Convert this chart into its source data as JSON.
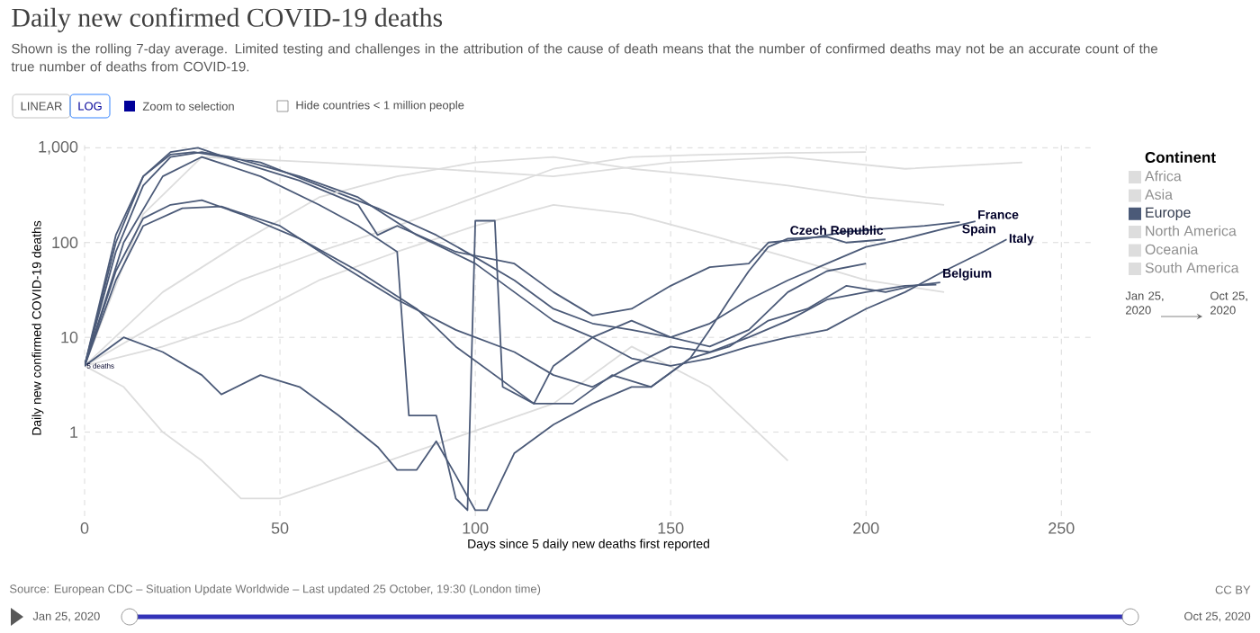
{
  "chart_data": {
    "type": "line",
    "title": "Daily new confirmed COVID-19 deaths",
    "subtitle": "Shown is the rolling 7-day average. Limited testing and challenges in the attribution of the cause of death means that the number of confirmed deaths may not be an accurate count of the true number of deaths from COVID-19.",
    "xlabel": "Days since 5 daily new deaths first reported",
    "ylabel": "Daily new confirmed COVID-19 deaths",
    "legend_title": "Continent",
    "log": true,
    "grid": true,
    "legend": "right",
    "marker": "none",
    "line_style": "solid",
    "xlim": [
      0,
      258
    ],
    "ylim": [
      0.13,
      1200
    ],
    "xticks": [
      0,
      50,
      100,
      150,
      200,
      250
    ],
    "yticks": [
      1,
      10,
      100,
      {
        "value": 1000,
        "label": "1,000"
      }
    ],
    "series": [
      {
        "name": "Africa",
        "color": "#dddddd",
        "x": [
          0,
          20,
          40,
          60,
          80,
          100,
          120,
          140,
          160,
          180,
          200,
          220
        ],
        "values": [
          5,
          8,
          15,
          40,
          80,
          150,
          250,
          200,
          120,
          70,
          40,
          30
        ]
      },
      {
        "name": "Asia",
        "color": "#dddddd",
        "x": [
          0,
          20,
          40,
          60,
          80,
          100,
          120,
          140,
          160,
          180,
          200
        ],
        "values": [
          5,
          15,
          40,
          80,
          150,
          300,
          600,
          800,
          850,
          880,
          900
        ]
      },
      {
        "name": "Europe",
        "color": "#4b5a78",
        "x": [
          0,
          8,
          15,
          22,
          30,
          45,
          60,
          75,
          90,
          100,
          110,
          120,
          130,
          140,
          150,
          160,
          170,
          180,
          190,
          200,
          210,
          220,
          228
        ],
        "values": [
          5,
          80,
          400,
          800,
          900,
          700,
          400,
          230,
          120,
          70,
          40,
          20,
          14,
          12,
          10,
          14,
          25,
          40,
          60,
          90,
          110,
          140,
          168
        ]
      },
      {
        "name": "North America",
        "color": "#dddddd",
        "x": [
          0,
          15,
          30,
          60,
          90,
          120,
          150,
          180,
          210,
          240
        ],
        "values": [
          5,
          200,
          800,
          700,
          600,
          500,
          700,
          800,
          600,
          700
        ]
      },
      {
        "name": "Oceania",
        "color": "#dddddd",
        "x": [
          0,
          10,
          20,
          30,
          40,
          50,
          120,
          140,
          160,
          180
        ],
        "values": [
          5,
          3,
          1,
          0.5,
          0.2,
          0.2,
          2,
          8,
          3,
          0.5
        ]
      },
      {
        "name": "South America",
        "color": "#dddddd",
        "x": [
          0,
          20,
          40,
          60,
          80,
          100,
          120,
          140,
          160,
          180,
          200,
          220
        ],
        "values": [
          5,
          30,
          100,
          300,
          500,
          700,
          800,
          600,
          500,
          400,
          300,
          250
        ]
      },
      {
        "color": "#4b5a78",
        "x": [
          0,
          8,
          15,
          22,
          29,
          40,
          55,
          70,
          75,
          80,
          95,
          110,
          120,
          130,
          140,
          150,
          160,
          170,
          175,
          185,
          195,
          205,
          215,
          224
        ],
        "values": [
          5,
          100,
          500,
          900,
          1000,
          700,
          450,
          250,
          120,
          150,
          80,
          60,
          30,
          17,
          20,
          35,
          55,
          60,
          100,
          110,
          130,
          140,
          150,
          165
        ]
      },
      {
        "color": "#4b5a78",
        "x": [
          0,
          8,
          15,
          22,
          28,
          40,
          55,
          70,
          85,
          100,
          110,
          120,
          130,
          140,
          150,
          160,
          170,
          180,
          190,
          200,
          210,
          220,
          230,
          236
        ],
        "values": [
          5,
          120,
          500,
          850,
          900,
          750,
          500,
          300,
          120,
          60,
          30,
          15,
          10,
          6,
          5,
          6,
          8,
          10,
          12,
          20,
          30,
          50,
          80,
          108
        ]
      },
      {
        "color": "#4b5a78",
        "x": [
          0,
          8,
          15,
          22,
          30,
          40,
          55,
          70,
          85,
          95,
          105,
          115,
          125,
          135,
          145,
          155,
          165,
          175,
          185,
          195,
          205,
          212,
          219
        ],
        "values": [
          5,
          50,
          180,
          250,
          280,
          200,
          110,
          50,
          20,
          8,
          4,
          2,
          2,
          4,
          3,
          6,
          8,
          15,
          20,
          35,
          30,
          35,
          38
        ]
      },
      {
        "color": "#4b5a78",
        "x": [
          0,
          10,
          20,
          30,
          35,
          45,
          55,
          65,
          75,
          80,
          85,
          90,
          95,
          100,
          103,
          110,
          120,
          130,
          140,
          145,
          155,
          160,
          165,
          170,
          175,
          180,
          190,
          195,
          205
        ],
        "values": [
          5,
          10,
          7,
          4,
          2.5,
          4,
          3,
          1.5,
          0.7,
          0.4,
          0.4,
          0.8,
          0.35,
          0.15,
          0.15,
          0.6,
          1.2,
          2,
          3,
          3,
          6,
          12,
          25,
          50,
          90,
          110,
          115,
          100,
          108
        ]
      },
      {
        "color": "#4b5a78",
        "x": [
          0,
          8,
          15,
          25,
          35,
          50,
          65,
          80,
          95,
          110,
          120,
          130,
          140,
          150,
          160,
          170,
          180,
          190,
          200,
          210,
          218
        ],
        "values": [
          5,
          40,
          150,
          230,
          240,
          150,
          60,
          25,
          12,
          7,
          4,
          3,
          5,
          8,
          7,
          10,
          15,
          25,
          30,
          35,
          36
        ]
      },
      {
        "color": "#4b5a78",
        "x": [
          0,
          10,
          20,
          30,
          45,
          60,
          70,
          80,
          83,
          90,
          95,
          98,
          100,
          105,
          107,
          115,
          120,
          130,
          140,
          150,
          160,
          170,
          180,
          190,
          200
        ],
        "values": [
          5,
          100,
          500,
          800,
          500,
          250,
          150,
          80,
          1.5,
          1.5,
          0.2,
          0.15,
          170,
          170,
          3,
          2,
          5,
          10,
          15,
          10,
          8,
          12,
          30,
          50,
          60
        ]
      }
    ],
    "annotations": [
      {
        "text": "5 deaths",
        "x": 0,
        "y": 5
      },
      {
        "text": "Czech Republic",
        "x": 205,
        "y": 108
      },
      {
        "text": "France",
        "x": 228,
        "y": 168
      },
      {
        "text": "Spain",
        "x": 224,
        "y": 165
      },
      {
        "text": "Italy",
        "x": 236,
        "y": 108
      },
      {
        "text": "Belgium",
        "x": 219,
        "y": 38
      },
      "Source: European CDC – Situation Update Worldwide – Last updated 25 October, 19:30 (London time)",
      "CC BY",
      "LINEAR",
      "LOG",
      "Zoom to selection",
      "Hide countries < 1 million people",
      "Jan 25, 2020",
      "Oct 25, 2020",
      "Jan 25, 2020",
      "Oct 25, 2020"
    ]
  }
}
